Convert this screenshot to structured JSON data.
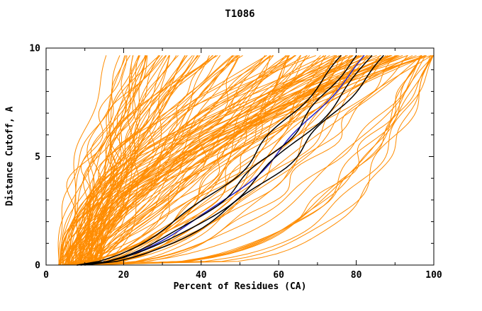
{
  "chart_data": {
    "type": "line",
    "title": "T1086",
    "xlabel": "Percent of Residues (CA)",
    "ylabel": "Distance Cutoff, A",
    "xlim": [
      0,
      100
    ],
    "ylim": [
      0,
      10
    ],
    "xticks": [
      0,
      20,
      40,
      60,
      80,
      100
    ],
    "yticks": [
      0,
      5,
      10
    ],
    "x_minor_step": 10,
    "y_minor_step": 1,
    "grid": false,
    "legend": "none",
    "plateau_cutoff": 9.65,
    "colors": {
      "prediction": "#ff8c00",
      "highlighted": "#000000",
      "reference": "#2323c8",
      "axis": "#000000",
      "text": "#000000"
    },
    "series_groups": [
      {
        "name": "predictions",
        "description": "many orange model accumulation curves, percent of CA residues under each distance cutoff",
        "color_key": "prediction",
        "style": "generated",
        "count": 150,
        "generator": {
          "seed": 1086,
          "start_percent_range": [
            3,
            14
          ],
          "end_percent_range": [
            15,
            100
          ],
          "exponent_range": [
            0.35,
            2.45
          ],
          "right_hug_fraction": 0.06,
          "wiggle_amp_range": [
            0.6,
            2.8
          ]
        }
      },
      {
        "name": "highlighted-models",
        "description": "black highlighted model curves",
        "color_key": "highlighted",
        "curves": [
          {
            "x0": 8,
            "x1": 76,
            "exp": 0.62,
            "amp": 1.6,
            "freq": 2.6,
            "phase": 0.7
          },
          {
            "x0": 9,
            "x1": 80,
            "exp": 0.58,
            "amp": 1.4,
            "freq": 3.1,
            "phase": 2.2
          },
          {
            "x0": 8,
            "x1": 84,
            "exp": 0.55,
            "amp": 1.7,
            "freq": 2.2,
            "phase": 4.1
          },
          {
            "x0": 10,
            "x1": 87,
            "exp": 0.55,
            "amp": 1.5,
            "freq": 2.9,
            "phase": 5.3
          }
        ]
      },
      {
        "name": "reference-model",
        "description": "blue reference model curve",
        "color_key": "reference",
        "curves": [
          {
            "x0": 9,
            "x1": 82,
            "exp": 0.58,
            "amp": 1.1,
            "freq": 2.4,
            "phase": 1.4
          }
        ]
      }
    ]
  }
}
